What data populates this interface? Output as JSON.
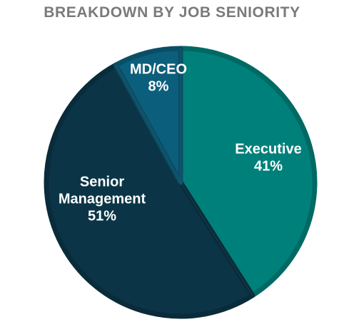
{
  "chart_data": {
    "type": "pie",
    "title": "BREAKDOWN BY JOB SENIORITY",
    "slices": [
      {
        "label_lines": [
          "Executive"
        ],
        "value": 41,
        "value_label": "41%",
        "color": "#00807a"
      },
      {
        "label_lines": [
          "Senior",
          "Management"
        ],
        "value": 51,
        "value_label": "51%",
        "color": "#0b3547"
      },
      {
        "label_lines": [
          "MD/CEO"
        ],
        "value": 8,
        "value_label": "8%",
        "color": "#0c5f7c"
      }
    ],
    "start_angle_deg": 0,
    "direction": "clockwise",
    "legend": "none",
    "colors": {
      "title": "#7a7a7a",
      "label_text": "#ffffff"
    }
  }
}
